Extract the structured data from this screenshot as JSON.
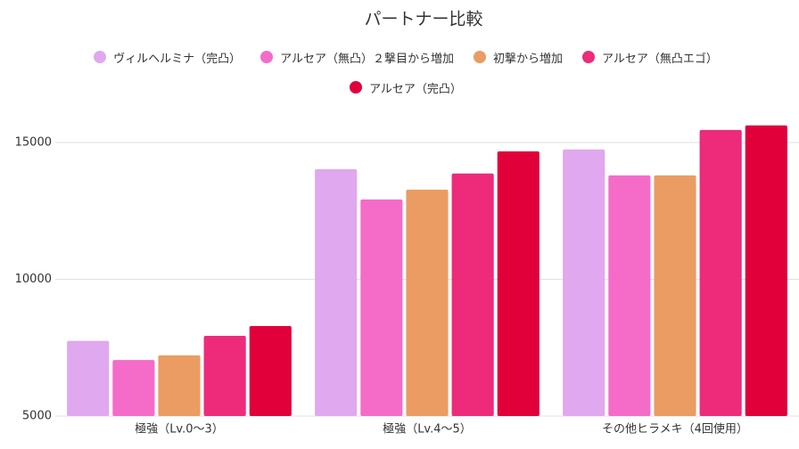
{
  "chart_data": {
    "type": "bar",
    "title": "パートナー比較",
    "categories": [
      "極強（Lv.0〜3）",
      "極強（Lv.4〜5）",
      "その他ヒラメキ（4回使用）"
    ],
    "series": [
      {
        "name": "ヴィルヘルミナ（完凸）",
        "color": "#e0a8ee",
        "values": [
          7750,
          14030,
          14750
        ]
      },
      {
        "name": "アルセア（無凸）２撃目から増加",
        "color": "#f46cc8",
        "values": [
          7050,
          12920,
          13800
        ]
      },
      {
        "name": "初撃から増加",
        "color": "#eb9c63",
        "values": [
          7220,
          13280,
          13800
        ]
      },
      {
        "name": "アルセア（無凸エゴ）",
        "color": "#ee2a7b",
        "values": [
          7930,
          13870,
          15460
        ]
      },
      {
        "name": "アルセア（完凸）",
        "color": "#e1003a",
        "values": [
          8290,
          14680,
          15630
        ]
      }
    ],
    "ylim": [
      5000,
      16500
    ],
    "yticks": [
      5000,
      10000,
      15000
    ],
    "grid": true
  }
}
